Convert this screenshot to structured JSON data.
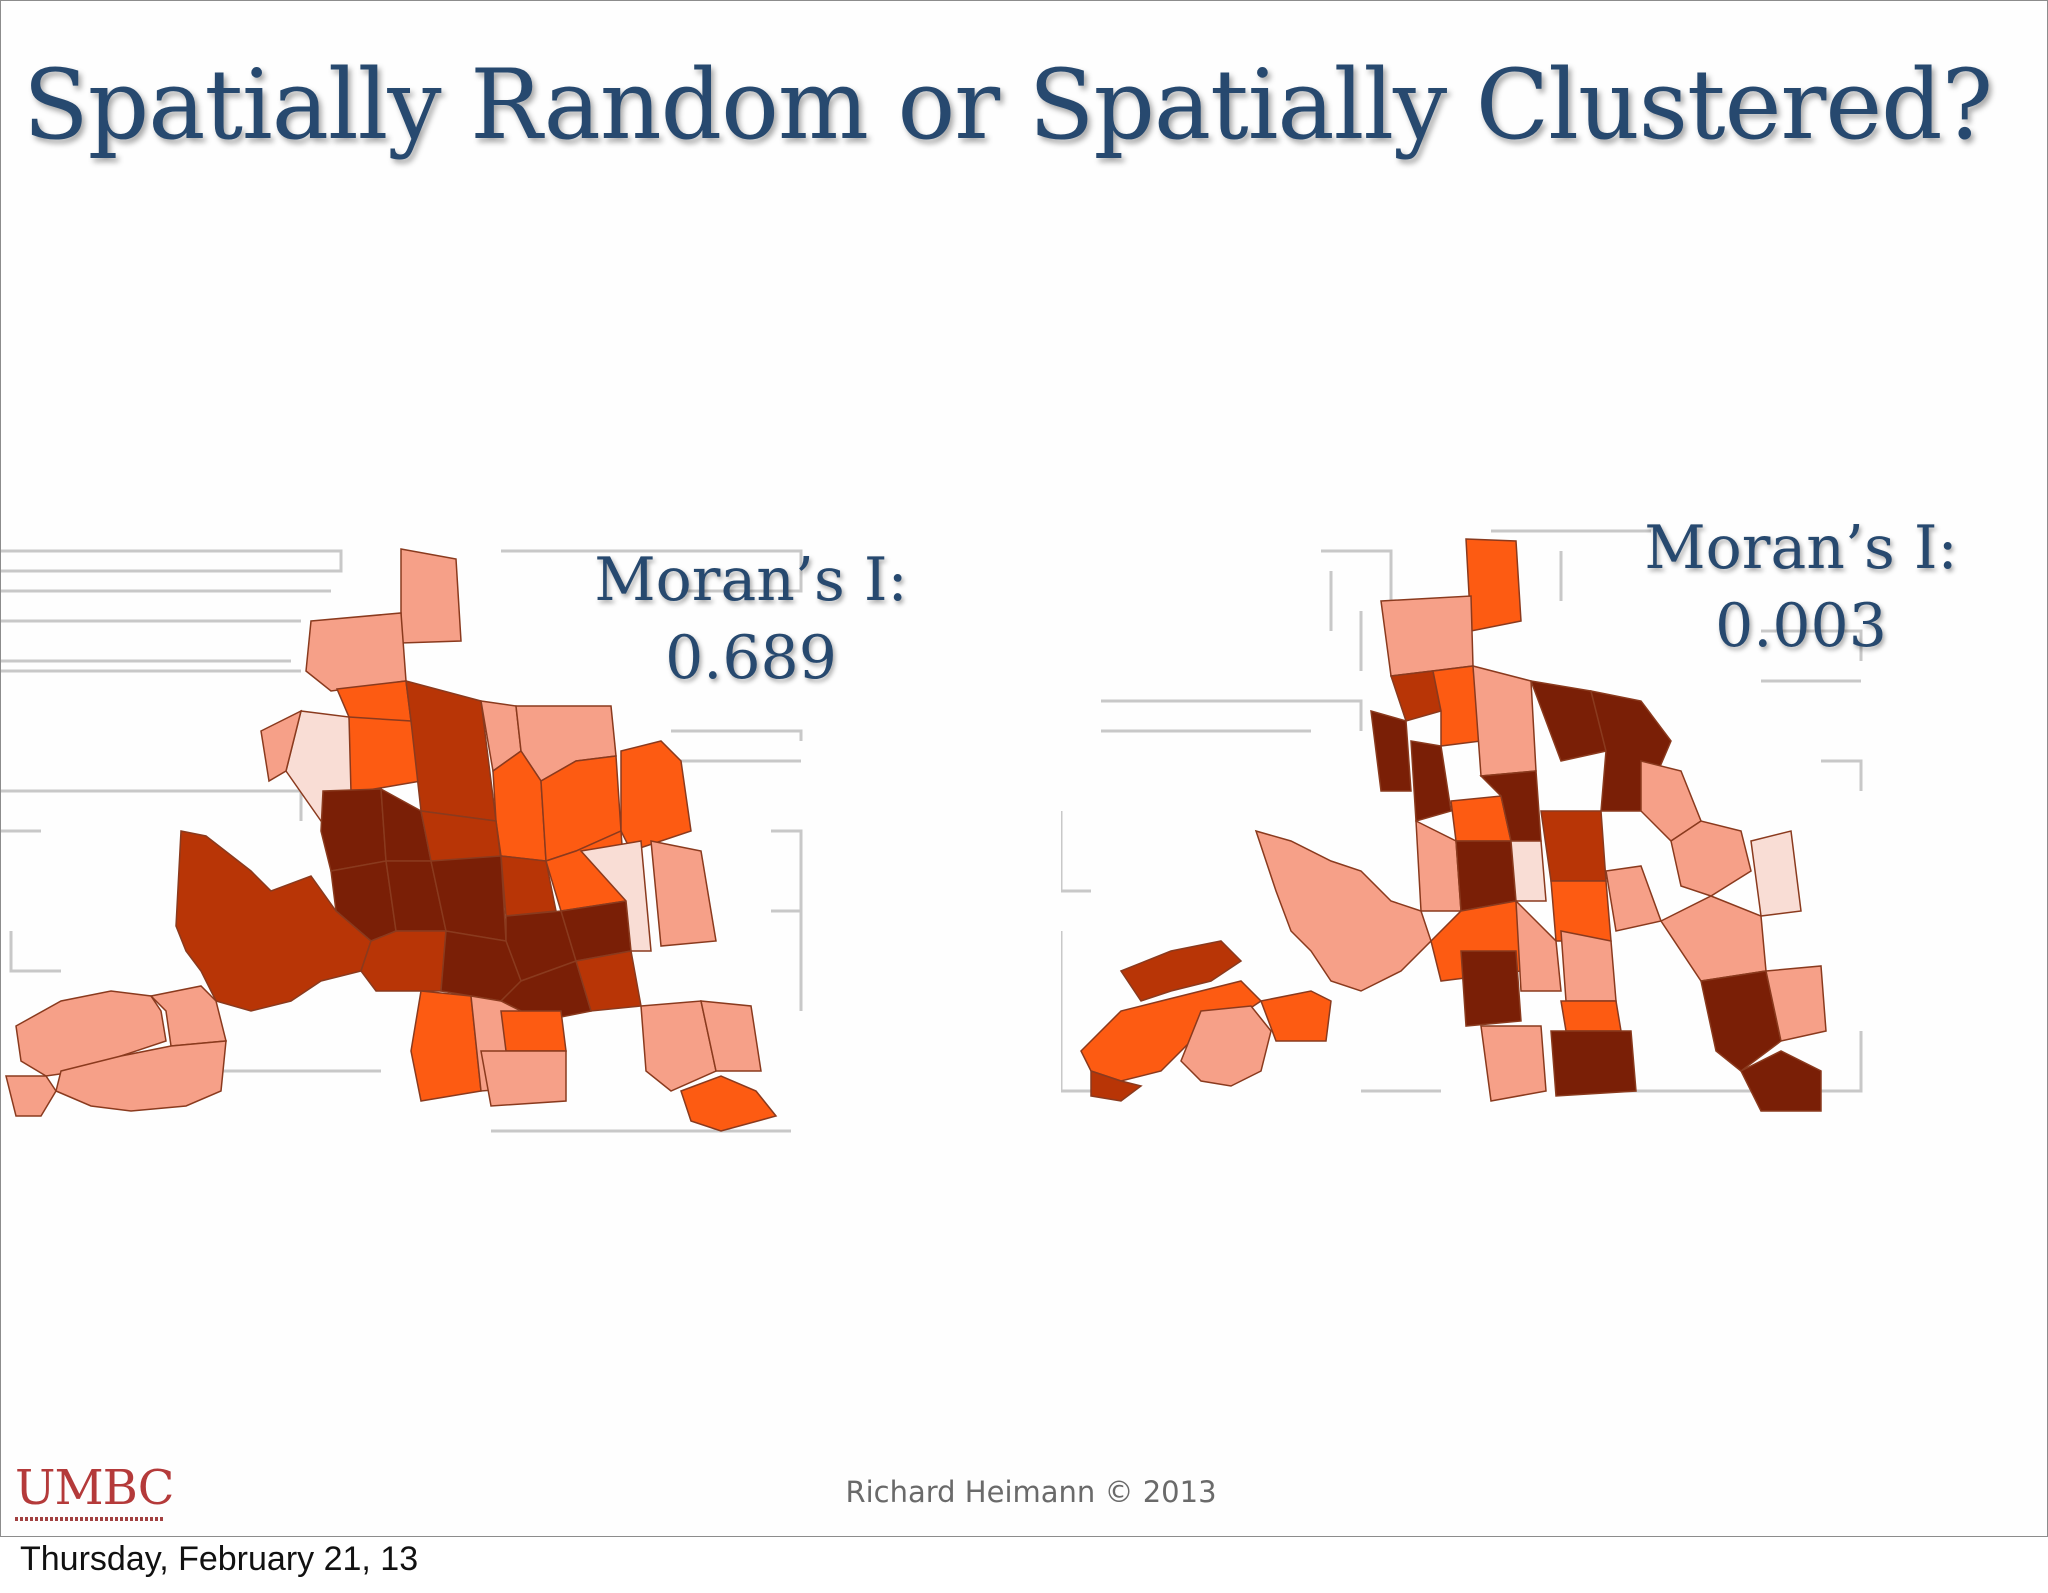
{
  "slide": {
    "title": "Spatially Random or Spatially Clustered?",
    "left_panel": {
      "stat_label": "Moran’s I:",
      "stat_value": "0.689"
    },
    "right_panel": {
      "stat_label": "Moran’s I:",
      "stat_value": "0.003"
    },
    "logo_text": "UMBC",
    "credit": "Richard Heimann © 2013"
  },
  "colors": {
    "title": "#27496f",
    "class_1": "#f9ddd5",
    "class_2": "#f6a088",
    "class_3": "#fd5b12",
    "class_4": "#b83506",
    "class_5": "#7a1f06",
    "logo": "#b43a3a"
  },
  "date_label": "Thursday, February 21, 13"
}
